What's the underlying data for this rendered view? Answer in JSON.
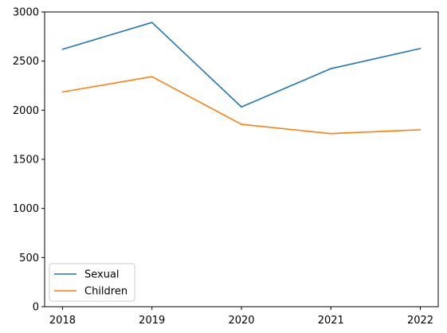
{
  "chart_data": {
    "type": "line",
    "title": "",
    "xlabel": "",
    "ylabel": "",
    "x": [
      2018,
      2019,
      2020,
      2021,
      2022
    ],
    "xlim": [
      2017.8,
      2022.2
    ],
    "ylim": [
      0,
      3000
    ],
    "yticks": [
      0,
      500,
      1000,
      1500,
      2000,
      2500,
      3000
    ],
    "grid": false,
    "legend_position": "lower-left",
    "series": [
      {
        "name": "Sexual",
        "color": "#1f77b4",
        "values": [
          2620,
          2893,
          2033,
          2423,
          2628
        ]
      },
      {
        "name": "Children",
        "color": "#ff7f0e",
        "values": [
          2185,
          2342,
          1856,
          1762,
          1801
        ]
      }
    ]
  }
}
